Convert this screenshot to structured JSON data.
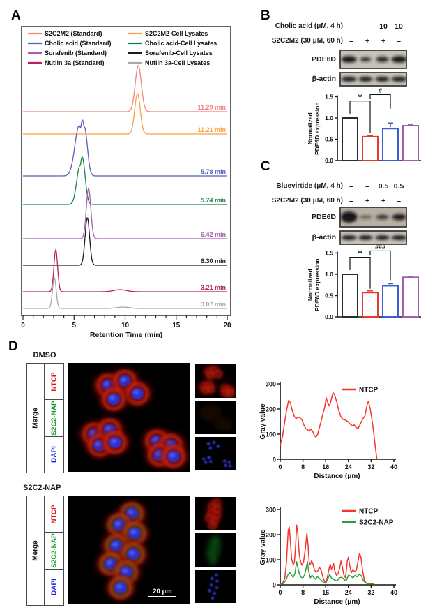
{
  "figure": {
    "panel_a": {
      "label": "A"
    },
    "panel_b": {
      "label": "B",
      "dose_rows": [
        {
          "label": "Cholic acid (μM, 4 h)",
          "values": [
            "–",
            "–",
            "10",
            "10"
          ]
        },
        {
          "label": "S2C2M2 (30 μM, 60 h)",
          "values": [
            "–",
            "+",
            "+",
            "–"
          ]
        }
      ],
      "blots": [
        {
          "label": "PDE6D"
        },
        {
          "label": "β-actin"
        }
      ]
    },
    "panel_c": {
      "label": "C",
      "dose_rows": [
        {
          "label": "Bluevirtide (μM, 4 h)",
          "values": [
            "–",
            "–",
            "0.5",
            "0.5"
          ]
        },
        {
          "label": "S2C2M2 (30 μM, 60 h)",
          "values": [
            "–",
            "+",
            "+",
            "–"
          ]
        }
      ],
      "blots": [
        {
          "label": "PDE6D"
        },
        {
          "label": "β-actin"
        }
      ]
    },
    "panel_d": {
      "label": "D",
      "rows": [
        {
          "title": "DMSO",
          "merge_label": "Merge",
          "channels": [
            {
              "name": "NTCP",
              "color": "#e01414"
            },
            {
              "name": "S2C2-NAP",
              "color": "#159a2c"
            },
            {
              "name": "DAPI",
              "color": "#1a28e0"
            }
          ],
          "scale_bar": ""
        },
        {
          "title": "S2C2-NAP",
          "merge_label": "Merge",
          "channels": [
            {
              "name": "NTCP",
              "color": "#e01414"
            },
            {
              "name": "S2C2-NAP",
              "color": "#159a2c"
            },
            {
              "name": "DAPI",
              "color": "#1a28e0"
            }
          ],
          "scale_bar": "20 μm"
        }
      ]
    }
  },
  "chart_data": [
    {
      "id": "chromatogram",
      "type": "line",
      "title": "HPLC chromatograms, stacked traces",
      "xlabel": "Retention Time (min)",
      "xlim": [
        0,
        20
      ],
      "xticks": [
        0,
        5,
        10,
        15,
        20
      ],
      "legend_columns": [
        [
          0,
          2,
          4,
          6
        ],
        [
          1,
          3,
          5,
          7
        ]
      ],
      "series": [
        {
          "name": "S2C2M2 (Standard)",
          "color": "#f4837e",
          "retention_time_min": 11.29,
          "rt_label": "11.29 min",
          "baseline": 126,
          "peaks": [
            {
              "rt": 11.29,
              "h": 66,
              "w": 0.3
            }
          ]
        },
        {
          "name": "S2C2M2-Cell Lysates",
          "color": "#f7a13e",
          "retention_time_min": 11.21,
          "rt_label": "11.21 min",
          "baseline": 158,
          "peaks": [
            {
              "rt": 11.21,
              "h": 58,
              "w": 0.27
            }
          ]
        },
        {
          "name": "Cholic acid (Standard)",
          "color": "#5560b8",
          "retention_time_min": 5.78,
          "rt_label": "5.78 min",
          "baseline": 218,
          "peaks": [
            {
              "rt": 5.5,
              "h": 72,
              "w": 0.42
            },
            {
              "rt": 5.82,
              "h": 80,
              "w": 0.3
            },
            {
              "rt": 6.02,
              "h": 70,
              "w": 0.28
            }
          ]
        },
        {
          "name": "Cholic acid-Cell Lysates",
          "color": "#17804b",
          "retention_time_min": 5.74,
          "rt_label": "5.74 min",
          "baseline": 259,
          "peaks": [
            {
              "rt": 5.58,
              "h": 56,
              "w": 0.32
            },
            {
              "rt": 5.8,
              "h": 68,
              "w": 0.28
            }
          ]
        },
        {
          "name": "Sorafenib (Standard)",
          "color": "#a55fb2",
          "retention_time_min": 6.42,
          "rt_label": "6.42 min",
          "baseline": 308,
          "peaks": [
            {
              "rt": 6.42,
              "h": 72,
              "w": 0.22
            }
          ]
        },
        {
          "name": "Sorafenib-Cell Lysates",
          "color": "#1a1a1a",
          "retention_time_min": 6.3,
          "rt_label": "6.30 min",
          "baseline": 346,
          "peaks": [
            {
              "rt": 6.3,
              "h": 68,
              "w": 0.22
            }
          ]
        },
        {
          "name": "Nutlin 3a (Standard)",
          "color": "#b52355",
          "retention_time_min": 3.21,
          "rt_label": "3.21 min",
          "baseline": 384,
          "peaks": [
            {
              "rt": 3.21,
              "h": 60,
              "w": 0.18
            },
            {
              "rt": 9.5,
              "h": 3,
              "w": 0.6
            }
          ]
        },
        {
          "name": "Nutlin 3a-Cell Lysates",
          "color": "#a9a9a9",
          "retention_time_min": 3.07,
          "rt_label": "3.07 min",
          "baseline": 408,
          "peaks": [
            {
              "rt": 3.07,
              "h": 44,
              "w": 0.18
            },
            {
              "rt": 9.8,
              "h": 2,
              "w": 0.6
            }
          ]
        }
      ]
    },
    {
      "id": "bar_b",
      "type": "bar",
      "ylabel_lines": [
        "Normalized",
        "PDE6D expression"
      ],
      "ylim": [
        0,
        1.5
      ],
      "yticks": [
        "0.0",
        "0.5",
        "1.0",
        "1.5"
      ],
      "bars": [
        {
          "color": "#2b2b2b",
          "value": 1.0,
          "error": 0
        },
        {
          "color": "#e8392e",
          "value": 0.56,
          "error": 0.02
        },
        {
          "color": "#3a5fd0",
          "value": 0.75,
          "error": 0.13
        },
        {
          "color": "#a05eb5",
          "value": 0.82,
          "error": 0.02
        }
      ],
      "significance": [
        {
          "label": "**",
          "x1": 0,
          "x2": 1,
          "y": 1.4,
          "drop1": 1.1,
          "drop2": 0.64
        },
        {
          "label": "#",
          "x1": 1,
          "x2": 2,
          "y": 1.55,
          "drop1": 1.44,
          "drop2": 1.22
        }
      ]
    },
    {
      "id": "bar_c",
      "type": "bar",
      "ylabel_lines": [
        "Normalized",
        "PDE6D expression"
      ],
      "ylim": [
        0,
        1.5
      ],
      "yticks": [
        "0.0",
        "0.5",
        "1.0",
        "1.5"
      ],
      "bars": [
        {
          "color": "#2b2b2b",
          "value": 1.0,
          "error": 0
        },
        {
          "color": "#e8392e",
          "value": 0.57,
          "error": 0.04
        },
        {
          "color": "#3a5fd0",
          "value": 0.73,
          "error": 0.05
        },
        {
          "color": "#a05eb5",
          "value": 0.93,
          "error": 0.02
        }
      ],
      "significance": [
        {
          "label": "**",
          "x1": 0,
          "x2": 1,
          "y": 1.4,
          "drop1": 1.1,
          "drop2": 0.66
        },
        {
          "label": "###",
          "x1": 1,
          "x2": 2,
          "y": 1.55,
          "drop1": 1.44,
          "drop2": 0.86
        }
      ]
    },
    {
      "id": "profile_dmso",
      "type": "line",
      "ylabel": "Gray value",
      "xlabel": "Distance (μm)",
      "xlim": [
        0,
        40
      ],
      "ylim": [
        0,
        300
      ],
      "xticks": [
        0,
        8,
        16,
        24,
        32,
        40
      ],
      "yticks": [
        0,
        100,
        200,
        300
      ],
      "series": [
        {
          "name": "NTCP",
          "color": "#f5342a",
          "points": [
            [
              0,
              55
            ],
            [
              0.8,
              90
            ],
            [
              1.6,
              150
            ],
            [
              2.4,
              205
            ],
            [
              3,
              235
            ],
            [
              3.6,
              225
            ],
            [
              4.2,
              195
            ],
            [
              5,
              170
            ],
            [
              5.6,
              162
            ],
            [
              6.4,
              168
            ],
            [
              7,
              165
            ],
            [
              7.6,
              158
            ],
            [
              8.4,
              135
            ],
            [
              9,
              122
            ],
            [
              9.6,
              118
            ],
            [
              10.2,
              112
            ],
            [
              10.8,
              120
            ],
            [
              11.4,
              112
            ],
            [
              12,
              95
            ],
            [
              12.6,
              88
            ],
            [
              13.2,
              100
            ],
            [
              14,
              135
            ],
            [
              14.8,
              170
            ],
            [
              15.6,
              205
            ],
            [
              16.2,
              245
            ],
            [
              16.8,
              222
            ],
            [
              17.4,
              212
            ],
            [
              18,
              240
            ],
            [
              18.6,
              265
            ],
            [
              19.2,
              255
            ],
            [
              19.8,
              232
            ],
            [
              20.6,
              195
            ],
            [
              21.4,
              168
            ],
            [
              22.2,
              158
            ],
            [
              23,
              156
            ],
            [
              23.8,
              150
            ],
            [
              24.6,
              140
            ],
            [
              25.4,
              133
            ],
            [
              26,
              137
            ],
            [
              26.6,
              128
            ],
            [
              27.4,
              122
            ],
            [
              28.2,
              140
            ],
            [
              29,
              160
            ],
            [
              29.8,
              172
            ],
            [
              30.6,
              218
            ],
            [
              31,
              230
            ],
            [
              31.6,
              205
            ],
            [
              32.2,
              165
            ],
            [
              32.8,
              115
            ],
            [
              33.4,
              55
            ],
            [
              34,
              2
            ]
          ]
        }
      ]
    },
    {
      "id": "profile_s2c2nap",
      "type": "line",
      "ylabel": "Gray value",
      "xlabel": "Distance (μm)",
      "xlim": [
        0,
        40
      ],
      "ylim": [
        0,
        300
      ],
      "xticks": [
        0,
        8,
        16,
        24,
        32,
        40
      ],
      "yticks": [
        0,
        100,
        200,
        300
      ],
      "series": [
        {
          "name": "NTCP",
          "color": "#f5342a",
          "points": [
            [
              0,
              4
            ],
            [
              0.8,
              6
            ],
            [
              1.6,
              25
            ],
            [
              2.2,
              90
            ],
            [
              2.8,
              215
            ],
            [
              3.2,
              230
            ],
            [
              3.6,
              170
            ],
            [
              4,
              105
            ],
            [
              4.6,
              80
            ],
            [
              5,
              92
            ],
            [
              5.4,
              150
            ],
            [
              5.8,
              238
            ],
            [
              6.2,
              205
            ],
            [
              6.6,
              135
            ],
            [
              7,
              100
            ],
            [
              7.6,
              78
            ],
            [
              8.2,
              90
            ],
            [
              8.8,
              140
            ],
            [
              9.4,
              205
            ],
            [
              9.8,
              160
            ],
            [
              10.2,
              90
            ],
            [
              10.6,
              80
            ],
            [
              11,
              95
            ],
            [
              11.4,
              88
            ],
            [
              12,
              62
            ],
            [
              12.6,
              50
            ],
            [
              13.2,
              55
            ],
            [
              13.8,
              70
            ],
            [
              14.4,
              58
            ],
            [
              15,
              32
            ],
            [
              15.6,
              15
            ],
            [
              16,
              8
            ],
            [
              16.6,
              30
            ],
            [
              17.2,
              65
            ],
            [
              17.6,
              82
            ],
            [
              18,
              62
            ],
            [
              18.4,
              75
            ],
            [
              18.8,
              85
            ],
            [
              19.2,
              55
            ],
            [
              19.8,
              38
            ],
            [
              20.4,
              45
            ],
            [
              21,
              70
            ],
            [
              21.4,
              95
            ],
            [
              21.8,
              75
            ],
            [
              22.4,
              40
            ],
            [
              23,
              28
            ],
            [
              23.6,
              95
            ],
            [
              24,
              110
            ],
            [
              24.4,
              82
            ],
            [
              25,
              48
            ],
            [
              25.6,
              62
            ],
            [
              26.2,
              52
            ],
            [
              26.8,
              58
            ],
            [
              27.4,
              95
            ],
            [
              27.9,
              125
            ],
            [
              28.4,
              112
            ],
            [
              29,
              55
            ],
            [
              29.6,
              20
            ],
            [
              30.2,
              8
            ],
            [
              31,
              4
            ],
            [
              32,
              4
            ],
            [
              33,
              5
            ]
          ]
        },
        {
          "name": "S2C2-NAP",
          "color": "#2ba03a",
          "points": [
            [
              0,
              2
            ],
            [
              1,
              5
            ],
            [
              2,
              18
            ],
            [
              2.8,
              42
            ],
            [
              3.4,
              48
            ],
            [
              4,
              38
            ],
            [
              4.6,
              30
            ],
            [
              5.2,
              45
            ],
            [
              5.8,
              92
            ],
            [
              6.2,
              70
            ],
            [
              6.8,
              42
            ],
            [
              7.4,
              30
            ],
            [
              8,
              28
            ],
            [
              8.6,
              40
            ],
            [
              9.2,
              70
            ],
            [
              9.6,
              92
            ],
            [
              10,
              55
            ],
            [
              10.6,
              28
            ],
            [
              11.2,
              38
            ],
            [
              11.8,
              30
            ],
            [
              12.4,
              22
            ],
            [
              13,
              32
            ],
            [
              13.6,
              28
            ],
            [
              14.2,
              22
            ],
            [
              15,
              12
            ],
            [
              16,
              6
            ],
            [
              16.8,
              25
            ],
            [
              17.4,
              42
            ],
            [
              18,
              28
            ],
            [
              18.6,
              22
            ],
            [
              19.4,
              18
            ],
            [
              20,
              15
            ],
            [
              20.8,
              28
            ],
            [
              21.6,
              30
            ],
            [
              22.4,
              22
            ],
            [
              23.2,
              15
            ],
            [
              24,
              38
            ],
            [
              24.8,
              35
            ],
            [
              25.6,
              28
            ],
            [
              26.4,
              38
            ],
            [
              27,
              32
            ],
            [
              27.8,
              42
            ],
            [
              28.6,
              35
            ],
            [
              29.2,
              18
            ],
            [
              30,
              8
            ],
            [
              31,
              3
            ],
            [
              32,
              3
            ]
          ]
        }
      ]
    }
  ]
}
